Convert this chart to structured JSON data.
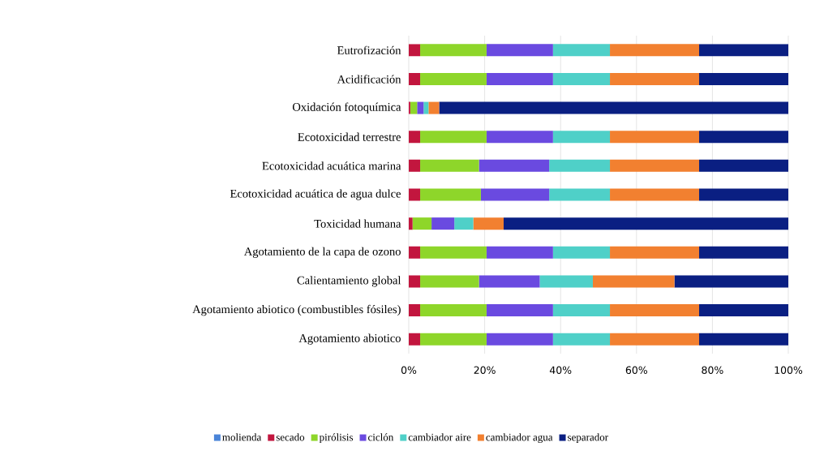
{
  "chart_data": {
    "type": "bar",
    "orientation": "horizontal",
    "stacked": true,
    "grid": "x",
    "legend": "bottom",
    "categories": [
      "Eutrofización",
      "Acidificación",
      "Oxidación fotoquímica",
      "Ecotoxicidad terrestre",
      "Ecotoxicidad acuática marina",
      "Ecotoxicidad acuática de agua dulce",
      "Toxicidad humana",
      "Agotamiento de la capa de ozono",
      "Calientamiento global",
      "Agotamiento abiotico (combustibles fósiles)",
      "Agotamiento abiotico"
    ],
    "xlim": [
      0,
      100
    ],
    "xticks": [
      {
        "value": 0,
        "label": "0%"
      },
      {
        "value": 20,
        "label": "20%"
      },
      {
        "value": 40,
        "label": "40%"
      },
      {
        "value": 60,
        "label": "60%"
      },
      {
        "value": 80,
        "label": "80%"
      },
      {
        "value": 100,
        "label": "100%"
      }
    ],
    "series": [
      {
        "name": "molienda",
        "color": "#4a84d8",
        "values": [
          0,
          0,
          0,
          0,
          0,
          0,
          0,
          0,
          0,
          0,
          0
        ]
      },
      {
        "name": "secado",
        "color": "#c2163e",
        "values": [
          3,
          3,
          0.4,
          3,
          3,
          3,
          1,
          3,
          3,
          3,
          3
        ]
      },
      {
        "name": "pirólisis",
        "color": "#8ed62a",
        "values": [
          17.5,
          17.5,
          1.8,
          17.5,
          15.5,
          16,
          5,
          17.5,
          15.5,
          17.5,
          17.5
        ]
      },
      {
        "name": "ciclón",
        "color": "#6a4ae0",
        "values": [
          17.5,
          17.5,
          1.7,
          17.5,
          18.5,
          18,
          6,
          17.5,
          16,
          17.5,
          17.5
        ]
      },
      {
        "name": "cambiador aire",
        "color": "#4fd0c8",
        "values": [
          15,
          15,
          1.3,
          15,
          16,
          16,
          5,
          15,
          14,
          15,
          15
        ]
      },
      {
        "name": "cambiador agua",
        "color": "#f28030",
        "values": [
          23.5,
          23.5,
          2.8,
          23.5,
          23.5,
          23.5,
          8,
          23.5,
          21.5,
          23.5,
          23.5
        ]
      },
      {
        "name": "separador",
        "color": "#0a1f82",
        "values": [
          23.5,
          23.5,
          92,
          23.5,
          23.5,
          23.5,
          75,
          23.5,
          30,
          23.5,
          23.5
        ]
      }
    ]
  }
}
